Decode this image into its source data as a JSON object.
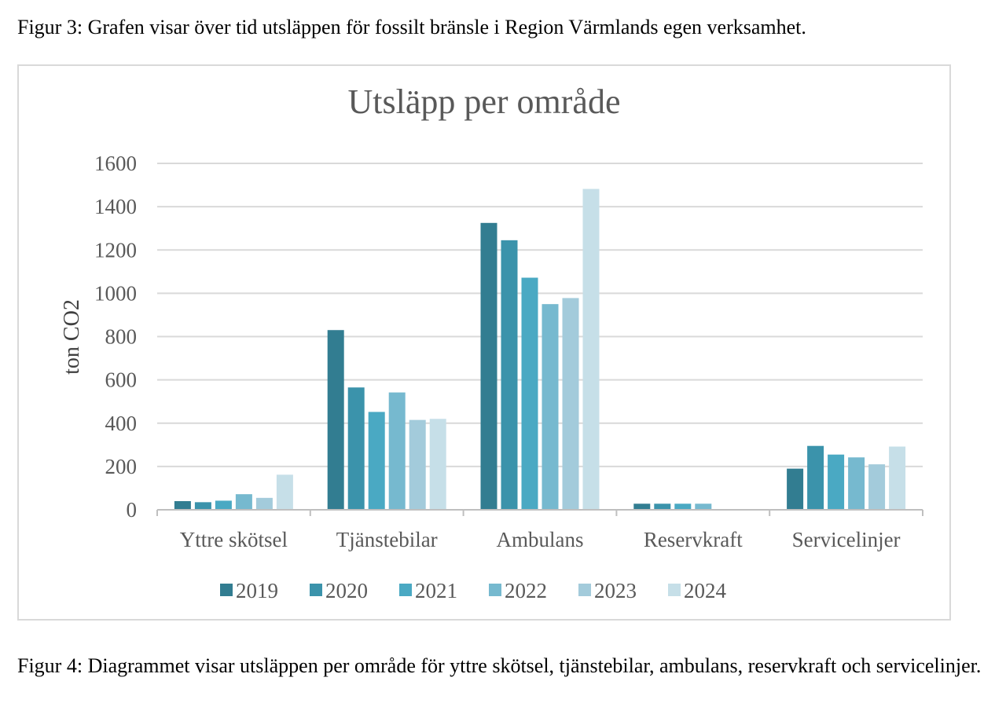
{
  "captions": {
    "top": "Figur 3: Grafen visar över tid utsläppen för fossilt bränsle i Region Värmlands egen verksamhet.",
    "bottom": "Figur 4: Diagrammet visar utsläppen per område för yttre skötsel, tjänstebilar, ambulans, reservkraft och servicelinjer."
  },
  "chart_data": {
    "type": "bar",
    "title": "Utsläpp per område",
    "xlabel": "",
    "ylabel": "ton CO2",
    "ylim": [
      0,
      1600
    ],
    "yticks": [
      0,
      200,
      400,
      600,
      800,
      1000,
      1200,
      1400,
      1600
    ],
    "grid": true,
    "legend_position": "bottom",
    "categories": [
      "Yttre skötsel",
      "Tjänstebilar",
      "Ambulans",
      "Reservkraft",
      "Servicelinjer"
    ],
    "series": [
      {
        "name": "2019",
        "color": "#327d91",
        "values": [
          40,
          830,
          1325,
          28,
          190
        ]
      },
      {
        "name": "2020",
        "color": "#3b93ab",
        "values": [
          35,
          565,
          1245,
          28,
          295
        ]
      },
      {
        "name": "2021",
        "color": "#4aa9c3",
        "values": [
          42,
          452,
          1072,
          28,
          255
        ]
      },
      {
        "name": "2022",
        "color": "#76b9cf",
        "values": [
          72,
          542,
          950,
          28,
          242
        ]
      },
      {
        "name": "2023",
        "color": "#a3cbdb",
        "values": [
          55,
          415,
          978,
          0,
          210
        ]
      },
      {
        "name": "2024",
        "color": "#c6dfe8",
        "values": [
          162,
          420,
          1482,
          0,
          292
        ]
      }
    ]
  }
}
